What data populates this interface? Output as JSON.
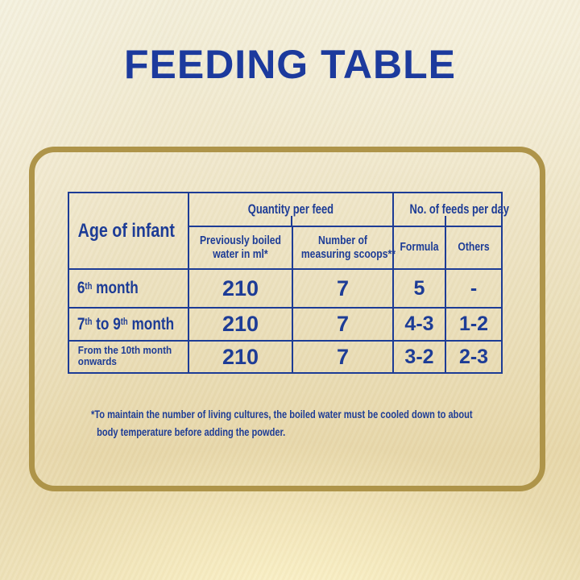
{
  "title": "FEEDING TABLE",
  "colors": {
    "text_blue": "#1d3c96",
    "title_blue": "#1c3a9d",
    "border_gold": "#ae9449",
    "background_cream": "#f0e8cd"
  },
  "table": {
    "age_header": "Age of infant",
    "groups": [
      {
        "label": "Quantity per feed"
      },
      {
        "label": "No. of feeds per day"
      }
    ],
    "sub_headers": [
      {
        "lines": [
          "Previously boiled",
          "water in ml*"
        ]
      },
      {
        "lines": [
          "Number of",
          "measuring scoops**"
        ]
      },
      {
        "lines": [
          "Formula"
        ]
      },
      {
        "lines": [
          "Others"
        ]
      }
    ],
    "rows": [
      {
        "age_parts": [
          [
            "text",
            "6"
          ],
          [
            "sup",
            "th"
          ],
          [
            "text",
            " month"
          ]
        ],
        "age_plain": "6th month",
        "water": "210",
        "scoops": "7",
        "formula": "5",
        "others": "-"
      },
      {
        "age_parts": [
          [
            "text",
            "7"
          ],
          [
            "sup",
            "th"
          ],
          [
            "text",
            " to 9"
          ],
          [
            "sup",
            "th"
          ],
          [
            "text",
            " month"
          ]
        ],
        "age_plain": "7th to 9th month",
        "water": "210",
        "scoops": "7",
        "formula": "4-3",
        "others": "1-2"
      },
      {
        "age_parts": [
          [
            "text",
            "From the 10th month onwards"
          ]
        ],
        "age_plain": "From the 10th month onwards",
        "water": "210",
        "scoops": "7",
        "formula": "3-2",
        "others": "2-3"
      }
    ]
  },
  "footnote": {
    "line1": "*To maintain the number of living cultures, the boiled water must be cooled down to about",
    "line2": "body temperature before adding the powder."
  }
}
